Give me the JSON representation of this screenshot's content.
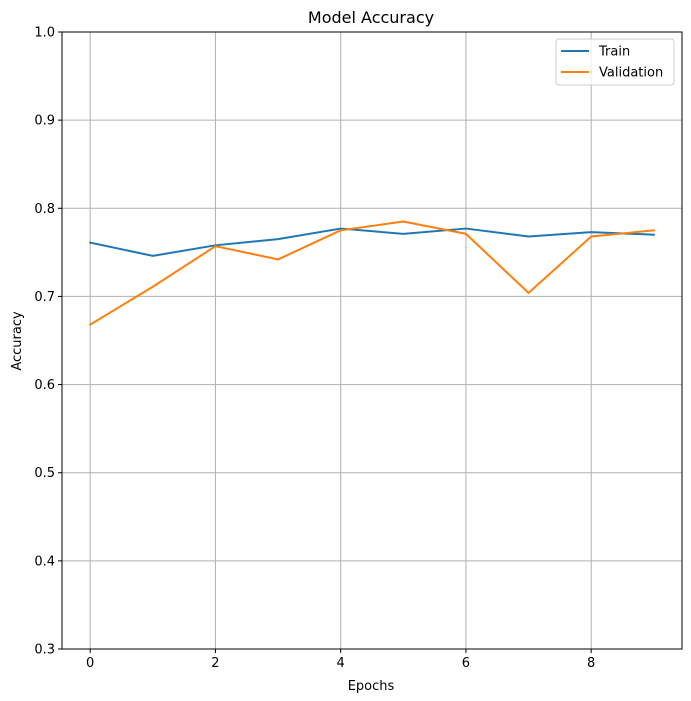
{
  "chart_data": {
    "type": "line",
    "title": "Model Accuracy",
    "xlabel": "Epochs",
    "ylabel": "Accuracy",
    "x": [
      0,
      1,
      2,
      3,
      4,
      5,
      6,
      7,
      8,
      9
    ],
    "xlim": [
      -0.45,
      9.45
    ],
    "ylim": [
      0.3,
      1.0
    ],
    "xticks": [
      0,
      2,
      4,
      6,
      8
    ],
    "yticks": [
      0.3,
      0.4,
      0.5,
      0.6,
      0.7,
      0.8,
      0.9,
      1.0
    ],
    "xtick_labels": [
      "0",
      "2",
      "4",
      "6",
      "8"
    ],
    "ytick_labels": [
      "0.3",
      "0.4",
      "0.5",
      "0.6",
      "0.7",
      "0.8",
      "0.9",
      "1.0"
    ],
    "grid": true,
    "legend_position": "top-right",
    "series": [
      {
        "name": "Train",
        "color": "#1f77b4",
        "values": [
          0.761,
          0.746,
          0.758,
          0.765,
          0.777,
          0.771,
          0.777,
          0.768,
          0.773,
          0.77
        ]
      },
      {
        "name": "Validation",
        "color": "#ff7f0e",
        "values": [
          0.668,
          0.711,
          0.757,
          0.742,
          0.775,
          0.785,
          0.771,
          0.704,
          0.768,
          0.775
        ]
      }
    ]
  }
}
